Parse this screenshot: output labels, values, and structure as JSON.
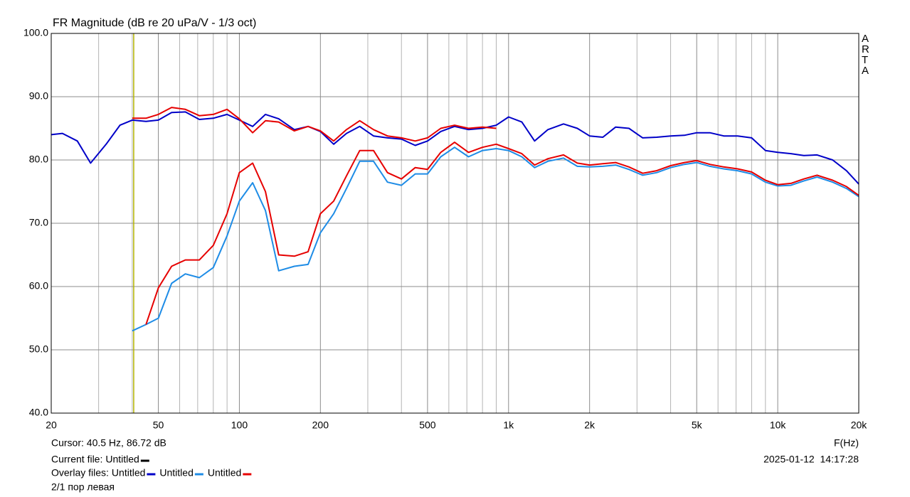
{
  "chart_data": {
    "type": "line",
    "title": "FR Magnitude (dB re 20 uPa/V - 1/3 oct)",
    "xlabel": "F(Hz)",
    "watermark": "ARTA",
    "xscale": "log",
    "grid": true,
    "x": [
      20,
      22,
      25,
      28,
      32,
      36,
      40,
      45,
      50,
      56,
      63,
      71,
      80,
      90,
      100,
      112,
      125,
      140,
      160,
      180,
      200,
      224,
      250,
      280,
      315,
      355,
      400,
      450,
      500,
      560,
      630,
      710,
      800,
      900,
      1000,
      1120,
      1250,
      1400,
      1600,
      1800,
      2000,
      2240,
      2500,
      2800,
      3150,
      3550,
      4000,
      4500,
      5000,
      5600,
      6300,
      7100,
      8000,
      9000,
      10000,
      11200,
      12500,
      14000,
      16000,
      18000,
      20000
    ],
    "series": [
      {
        "name": "Untitled",
        "color": "#0000c8",
        "values": [
          84.0,
          84.2,
          83.0,
          79.5,
          82.5,
          85.5,
          86.3,
          86.1,
          86.3,
          87.5,
          87.6,
          86.4,
          86.6,
          87.2,
          86.3,
          85.3,
          87.2,
          86.5,
          84.8,
          85.3,
          84.5,
          82.5,
          84.2,
          85.3,
          83.8,
          83.5,
          83.3,
          82.3,
          83.0,
          84.5,
          85.3,
          84.8,
          85.0,
          85.5,
          86.8,
          86.0,
          83.0,
          84.8,
          85.7,
          85.0,
          83.8,
          83.6,
          85.2,
          85.0,
          83.5,
          83.6,
          83.8,
          83.9,
          84.3,
          84.3,
          83.8,
          83.8,
          83.5,
          81.5,
          81.2,
          81.0,
          80.7,
          80.8,
          80.0,
          78.3,
          76.2
        ]
      },
      {
        "name": "Untitled",
        "color": "#1e8ce6",
        "values": [
          null,
          null,
          null,
          null,
          null,
          null,
          53.0,
          54.0,
          55.0,
          60.5,
          62.0,
          61.4,
          63.0,
          68.0,
          73.5,
          76.4,
          72.0,
          62.5,
          63.2,
          63.5,
          68.5,
          71.5,
          75.5,
          79.8,
          79.8,
          76.5,
          76.0,
          77.8,
          77.8,
          80.5,
          82.0,
          80.5,
          81.5,
          81.8,
          81.5,
          80.5,
          78.8,
          79.8,
          80.3,
          79.0,
          78.9,
          79.0,
          79.2,
          78.5,
          77.6,
          78.0,
          78.8,
          79.3,
          79.6,
          79.0,
          78.6,
          78.3,
          77.8,
          76.5,
          75.9,
          76.0,
          76.7,
          77.3,
          76.5,
          75.5,
          74.2
        ]
      },
      {
        "name": "Untitled",
        "color": "#e60000",
        "values": [
          null,
          null,
          null,
          null,
          null,
          null,
          null,
          54.0,
          59.8,
          63.2,
          64.2,
          64.2,
          66.5,
          71.5,
          78.0,
          79.5,
          75.0,
          65.0,
          64.8,
          65.5,
          71.5,
          73.5,
          77.5,
          81.5,
          81.5,
          78.0,
          77.0,
          78.8,
          78.5,
          81.2,
          82.8,
          81.2,
          82.0,
          82.5,
          81.8,
          81.0,
          79.2,
          80.2,
          80.8,
          79.5,
          79.2,
          79.4,
          79.6,
          78.9,
          77.9,
          78.3,
          79.1,
          79.6,
          79.9,
          79.3,
          78.9,
          78.6,
          78.1,
          76.8,
          76.1,
          76.3,
          77.0,
          77.6,
          76.8,
          75.8,
          74.4
        ]
      },
      {
        "color": "#e60000",
        "values": [
          null,
          null,
          null,
          null,
          null,
          null,
          86.6,
          86.6,
          87.2,
          88.3,
          88.0,
          87.0,
          87.2,
          88.0,
          86.5,
          84.3,
          86.2,
          86.0,
          84.6,
          85.3,
          84.6,
          83.0,
          84.8,
          86.2,
          84.8,
          83.8,
          83.5,
          83.0,
          83.5,
          85.0,
          85.5,
          85.0,
          85.2,
          85.0,
          null,
          null,
          null,
          null,
          null,
          null,
          null,
          null,
          null,
          null,
          null,
          null,
          null,
          null,
          null,
          null,
          null,
          null,
          null,
          null,
          null,
          null,
          null,
          null,
          null,
          null,
          null
        ]
      }
    ],
    "xlim": [
      20,
      20000
    ],
    "xticks": [
      20,
      50,
      100,
      200,
      500,
      {
        "value": 1000,
        "label": "1k"
      },
      {
        "value": 2000,
        "label": "2k"
      },
      {
        "value": 5000,
        "label": "5k"
      },
      {
        "value": 10000,
        "label": "10k"
      },
      {
        "value": 20000,
        "label": "20k"
      }
    ],
    "xminor": [
      30,
      40,
      60,
      70,
      80,
      90,
      300,
      400,
      600,
      700,
      800,
      900,
      3000,
      4000,
      6000,
      7000,
      8000,
      9000
    ],
    "ylim": [
      40,
      100
    ],
    "yticks": [
      {
        "value": 40,
        "label": "40.0"
      },
      {
        "value": 50,
        "label": "50.0"
      },
      {
        "value": 60,
        "label": "60.0"
      },
      {
        "value": 70,
        "label": "70.0"
      },
      {
        "value": 80,
        "label": "80.0"
      },
      {
        "value": 90,
        "label": "90.0"
      },
      {
        "value": 100,
        "label": "100.0"
      }
    ],
    "cursor": {
      "x": 40.5,
      "text": "Cursor: 40.5 Hz, 86.72 dB",
      "color": "#b4b400"
    },
    "current_file": {
      "label": "Current file:",
      "name": "Untitled",
      "color": "#000000"
    },
    "overlay_label": "Overlay files:",
    "timestamp": "2025-01-12  14:17:28",
    "note": "2/1 пор левая"
  }
}
